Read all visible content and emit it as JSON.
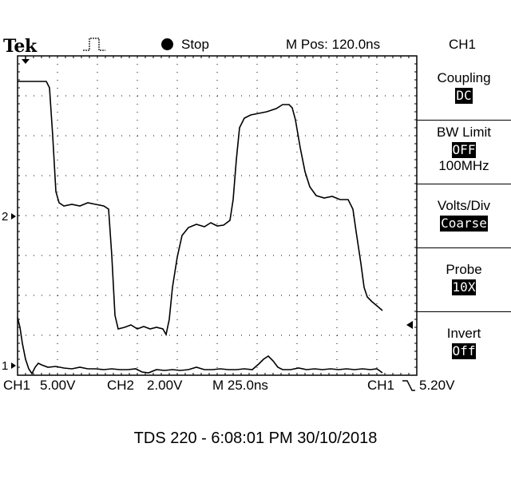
{
  "header": {
    "brand": "Tek",
    "trigger_icon": "pulse-trigger-icon",
    "run_state": "Stop",
    "horizontal_position": "M Pos: 120.0ns",
    "menu_channel": "CH1"
  },
  "markers": {
    "trigger_arrow": "down-arrow-icon",
    "ch2_marker": "2",
    "ch1_marker": "1",
    "trigger_level_arrow": "left-arrow-icon"
  },
  "side_menu": [
    {
      "label": "Coupling",
      "value": "DC",
      "sub": ""
    },
    {
      "label": "BW Limit",
      "value": "OFF",
      "sub": "100MHz"
    },
    {
      "label": "Volts/Div",
      "value": "Coarse",
      "sub": ""
    },
    {
      "label": "Probe",
      "value": "10X",
      "sub": ""
    },
    {
      "label": "Invert",
      "value": "Off",
      "sub": ""
    }
  ],
  "status_bar": {
    "ch1_label": "CH1",
    "ch1_scale": "5.00V",
    "ch2_label": "CH2",
    "ch2_scale": "2.00V",
    "timebase": "M 25.0ns",
    "trigger_source": "CH1",
    "trigger_slope_icon": "falling-edge-icon",
    "trigger_level": "5.20V"
  },
  "footer": {
    "caption": "TDS 220 - 6:08:01 PM    30/10/2018"
  }
}
